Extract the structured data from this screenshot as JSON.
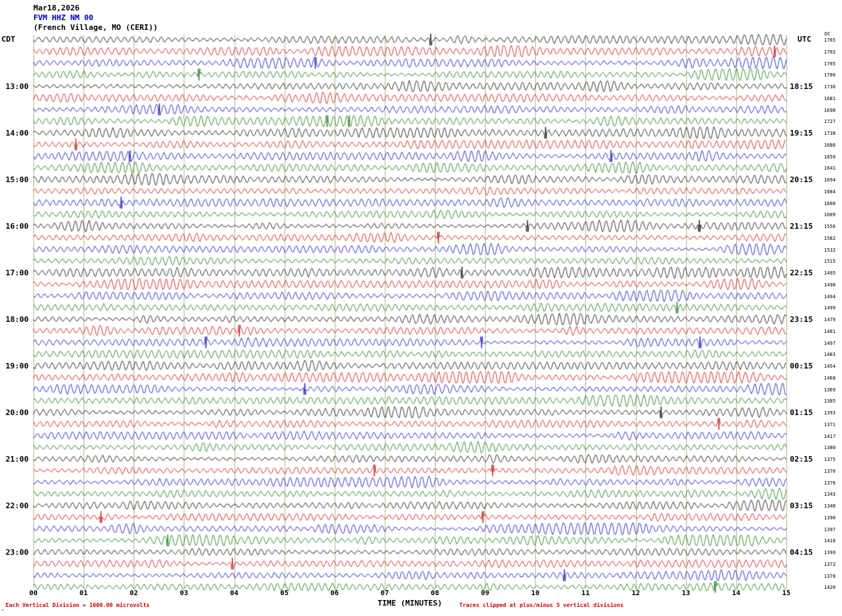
{
  "header": {
    "date": "Mar18,2026",
    "station": "FVM HHZ NM 00",
    "location": "(French Village, MO (CERI))",
    "left_tz": "CDT",
    "right_tz": "UTC",
    "dc_label": "DC"
  },
  "footer": {
    "xaxis_title": "TIME (MINUTES)",
    "left_note": "Each Vertical Division = 1000.00 microvolts",
    "right_note": "Traces clipped at plus/minus 5 vertical divisions",
    "corner_mark": "^"
  },
  "chart_data": {
    "type": "line",
    "kind": "helicorder-seismogram",
    "title": "FVM HHZ NM 00 (French Village, MO (CERI)) Mar18,2026",
    "xlabel": "TIME (MINUTES)",
    "minutes_per_row": 15,
    "rows": 48,
    "x_ticks": [
      "00",
      "01",
      "02",
      "03",
      "04",
      "05",
      "06",
      "07",
      "08",
      "09",
      "10",
      "11",
      "12",
      "13",
      "14",
      "15"
    ],
    "trace_color_cycle": [
      "#000000",
      "#cc0000",
      "#0000bb",
      "#007700"
    ],
    "grid_color": "#b4b488",
    "note_color": "#cc0000",
    "clip_divisions": 5,
    "microvolts_per_division": 1000.0,
    "left_time_labels": [
      {
        "row": 4,
        "label": "13:00"
      },
      {
        "row": 8,
        "label": "14:00"
      },
      {
        "row": 12,
        "label": "15:00"
      },
      {
        "row": 16,
        "label": "16:00"
      },
      {
        "row": 20,
        "label": "17:00"
      },
      {
        "row": 24,
        "label": "18:00"
      },
      {
        "row": 28,
        "label": "19:00"
      },
      {
        "row": 32,
        "label": "20:00"
      },
      {
        "row": 36,
        "label": "21:00"
      },
      {
        "row": 40,
        "label": "22:00"
      },
      {
        "row": 44,
        "label": "23:00"
      }
    ],
    "right_time_labels": [
      {
        "row": 4,
        "label": "18:15"
      },
      {
        "row": 8,
        "label": "19:15"
      },
      {
        "row": 12,
        "label": "20:15"
      },
      {
        "row": 16,
        "label": "21:15"
      },
      {
        "row": 20,
        "label": "22:15"
      },
      {
        "row": 24,
        "label": "23:15"
      },
      {
        "row": 28,
        "label": "00:15"
      },
      {
        "row": 32,
        "label": "01:15"
      },
      {
        "row": 36,
        "label": "02:15"
      },
      {
        "row": 40,
        "label": "03:15"
      },
      {
        "row": 44,
        "label": "04:15"
      }
    ],
    "dc_values": [
      1765,
      1702,
      1705,
      1706,
      1736,
      1681,
      1698,
      1727,
      1738,
      1686,
      1659,
      1641,
      1694,
      1684,
      1600,
      1609,
      1556,
      1582,
      1532,
      1515,
      1495,
      1498,
      1494,
      1499,
      1479,
      1481,
      1497,
      1483,
      1454,
      1468,
      1369,
      1385,
      1393,
      1371,
      1417,
      1380,
      1375,
      1370,
      1376,
      1343,
      1348,
      1390,
      1397,
      1418,
      1399,
      1372,
      1378,
      1420
    ]
  }
}
